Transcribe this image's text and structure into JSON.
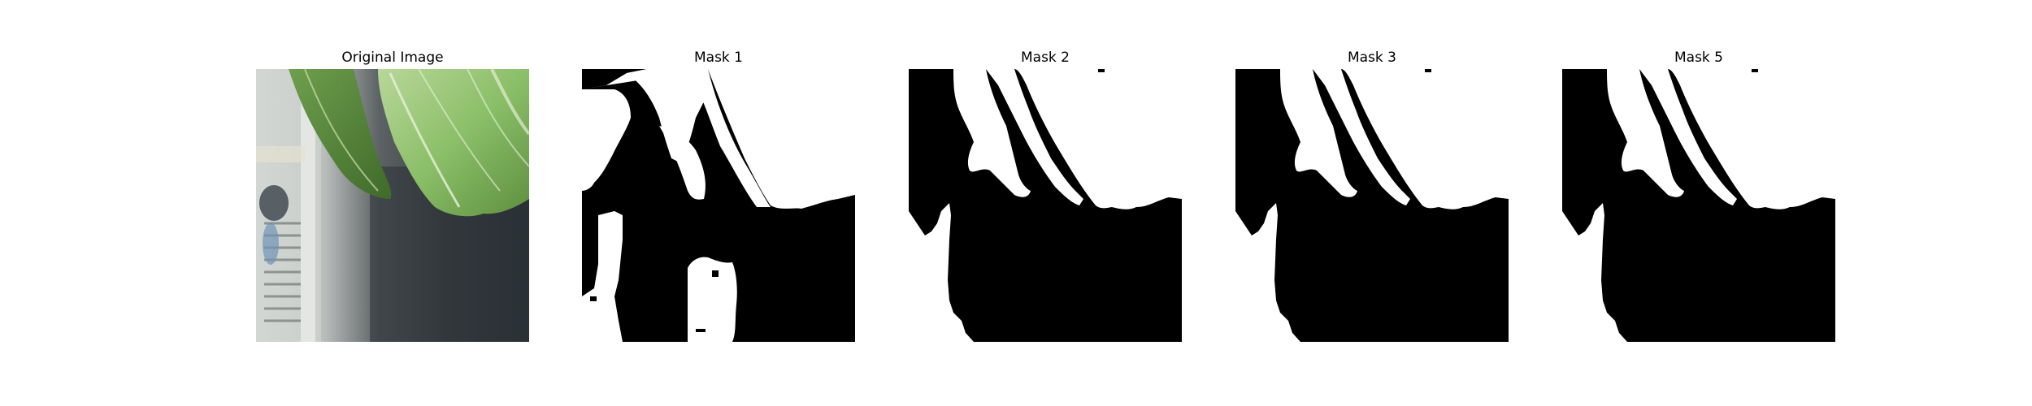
{
  "panels": [
    {
      "title": "Original Image",
      "kind": "photo"
    },
    {
      "title": "Mask 1",
      "kind": "mask-noisy"
    },
    {
      "title": "Mask 2",
      "kind": "mask"
    },
    {
      "title": "Mask 3",
      "kind": "mask"
    },
    {
      "title": "Mask 5",
      "kind": "mask"
    }
  ],
  "colors": {
    "background": "#ffffff",
    "mask_fill": "#000000",
    "mask_clear": "#ffffff",
    "leaf_green": "#8fbf6a",
    "leaf_dark": "#4f7a36",
    "photo_shadow": "#2a2f33"
  }
}
